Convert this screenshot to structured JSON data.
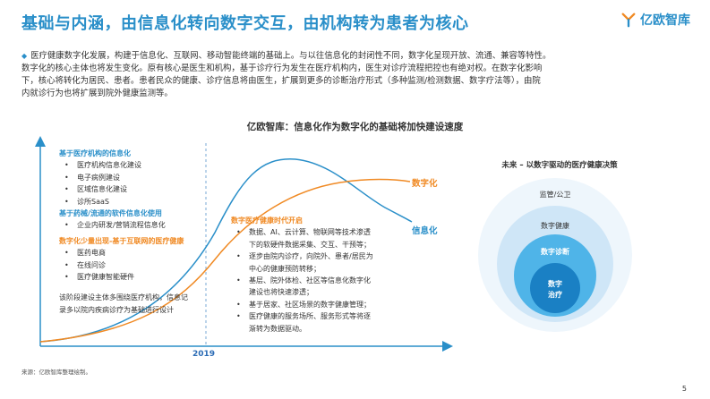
{
  "header": {
    "title": "基础与内涵，由信息化转向数字交互，由机构转为患者为核心",
    "logo_text": "亿欧智库"
  },
  "intro": {
    "line1": "医疗健康数字化发展，构建于信息化、互联网、移动智能终端的基础上。与以往信息化的封闭性不同，数字化呈现开放、流通、兼容等特性。",
    "line2": "数字化的核心主体也将发生变化。原有核心是医生和机构，基于诊疗行为发生在医疗机构内，医生对诊疗流程把控也有绝对权。在数字化影响",
    "line3": "下，核心将转化为居民、患者。患者民众的健康、诊疗信息将由医生，扩展到更多的诊断治疗形式（多种监测/检测数据、数字疗法等），由院",
    "line4": "内就诊行为也将扩展到院外健康监测等。"
  },
  "chart": {
    "title": "亿欧智库：信息化作为数字化的基础将加快建设速度",
    "series_labels": {
      "digital": "数字化",
      "info": "信息化"
    },
    "year_label": "2019"
  },
  "left_panel": {
    "group1_title": "基于医疗机构的信息化",
    "group1_items": [
      "医疗机构信息化建设",
      "电子病例建设",
      "区域信息化建设",
      "诊所SaaS"
    ],
    "group2_title": "基于药械/流通的软件信息化使用",
    "group2_items": [
      "企业内研发/营销流程信息化"
    ],
    "group3_title": "数字化少量出现-基于互联网的医疗健康",
    "group3_items": [
      "医药电商",
      "在线问诊",
      "医疗健康智能硬件"
    ],
    "summary_line1": "该阶段建设主体多围绕医疗机构，信息记",
    "summary_line2": "录多以院内疾病诊疗为基础进行设计"
  },
  "mid_panel": {
    "title": "数字医疗健康时代开启",
    "items": [
      {
        "l1": "数据、AI、云计算、物联网等技术渗透",
        "l2": "下的软硬件数据采集、交互、干预等；"
      },
      {
        "l1": "逐步由院内诊疗，向院外、患者/居民为",
        "l2": "中心的健康预防转移；"
      },
      {
        "l1": "基层、院外体检、社区等信息化数字化",
        "l2": "建设也将快速渗透；"
      },
      {
        "l1": "基于居家、社区场景的数字健康管理；",
        "l2": ""
      },
      {
        "l1": "医疗健康的服务场所、服务形式等将逐",
        "l2": "渐转为数据驱动。"
      }
    ]
  },
  "future": {
    "title": "未来 – 以数字驱动的医疗健康决策",
    "ring1": "监管/公卫",
    "ring2": "数字健康",
    "ring3": "数字诊断",
    "core_line1": "数字",
    "core_line2": "治疗"
  },
  "footer": {
    "source": "来源：亿欧智库整理绘制。",
    "page": "5"
  },
  "colors": {
    "accent_blue": "#2a8fc9",
    "accent_orange": "#f08a24"
  }
}
